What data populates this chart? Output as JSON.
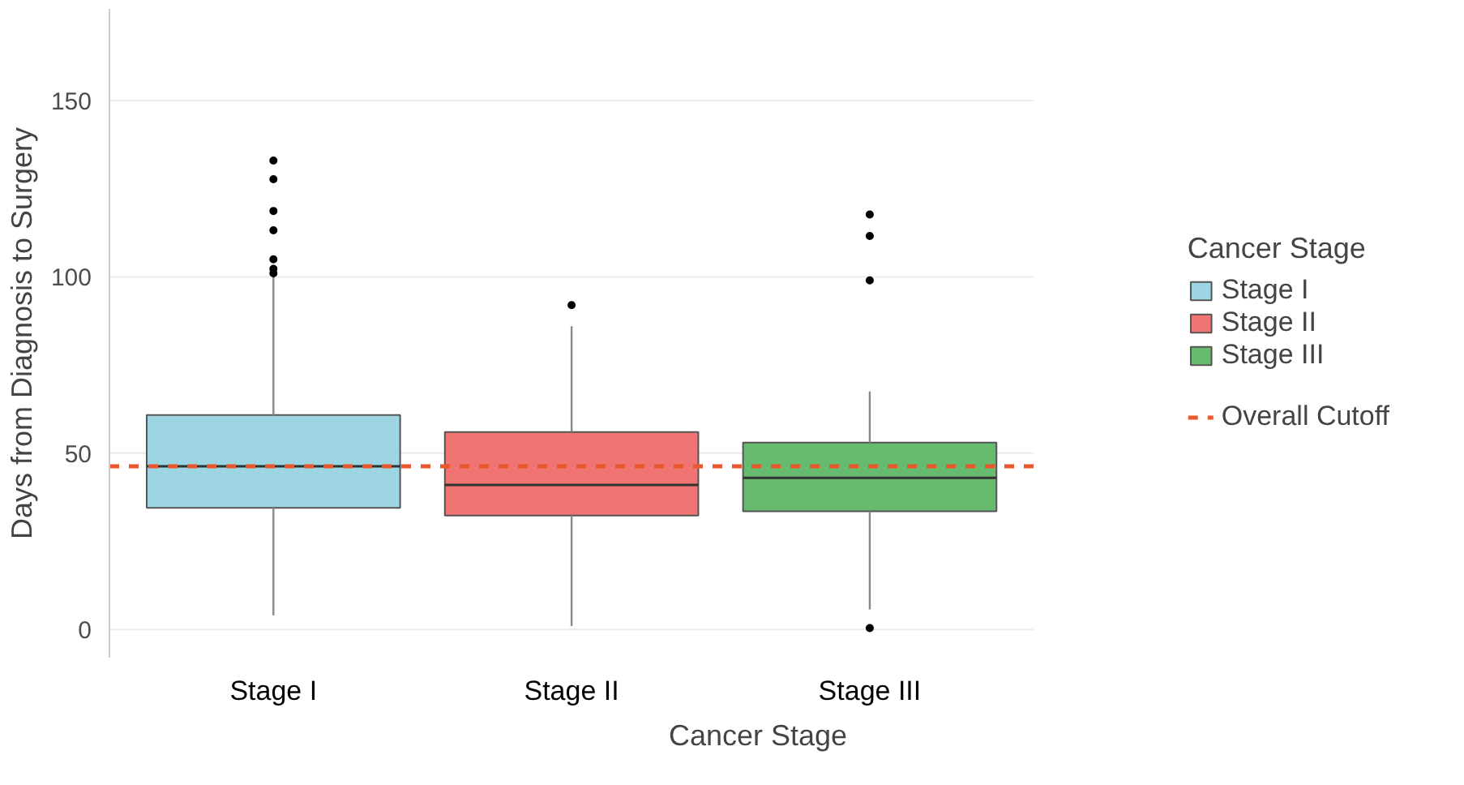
{
  "chart_data": {
    "type": "box",
    "xlabel": "Cancer Stage",
    "ylabel": "Days from Diagnosis to Surgery",
    "legend_title": "Cancer Stage",
    "categories": [
      "Stage I",
      "Stage II",
      "Stage III"
    ],
    "series": [
      {
        "name": "Stage I",
        "color": "#9dd5e3",
        "boxes": [
          {
            "low": 4,
            "q1": 34.5,
            "median": 46.3,
            "q3": 60.8,
            "high": 100.6,
            "outliers": [
              133,
              127.7,
              118.7,
              113.2,
              105,
              102.3,
              101
            ]
          },
          null,
          null
        ]
      },
      {
        "name": "Stage II",
        "color": "#ef7472",
        "boxes": [
          null,
          {
            "low": 1,
            "q1": 32.3,
            "median": 41,
            "q3": 56,
            "high": 86,
            "outliers": [
              92
            ]
          },
          null
        ]
      },
      {
        "name": "Stage III",
        "color": "#66bb6e",
        "boxes": [
          null,
          null,
          {
            "low": 5.7,
            "q1": 33.5,
            "median": 43,
            "q3": 53,
            "high": 67.5,
            "outliers": [
              0.4,
              99,
              111.6,
              117.7
            ]
          }
        ]
      }
    ],
    "ylim": [
      -8,
      176
    ],
    "yticks": [
      0,
      50,
      100,
      150
    ],
    "grid": "y",
    "legend": "right",
    "ref_lines": [
      {
        "axis": "y",
        "value": 46.3,
        "label": "Overall Cutoff",
        "color": "#e8582c",
        "line_style": "dashed"
      }
    ]
  }
}
